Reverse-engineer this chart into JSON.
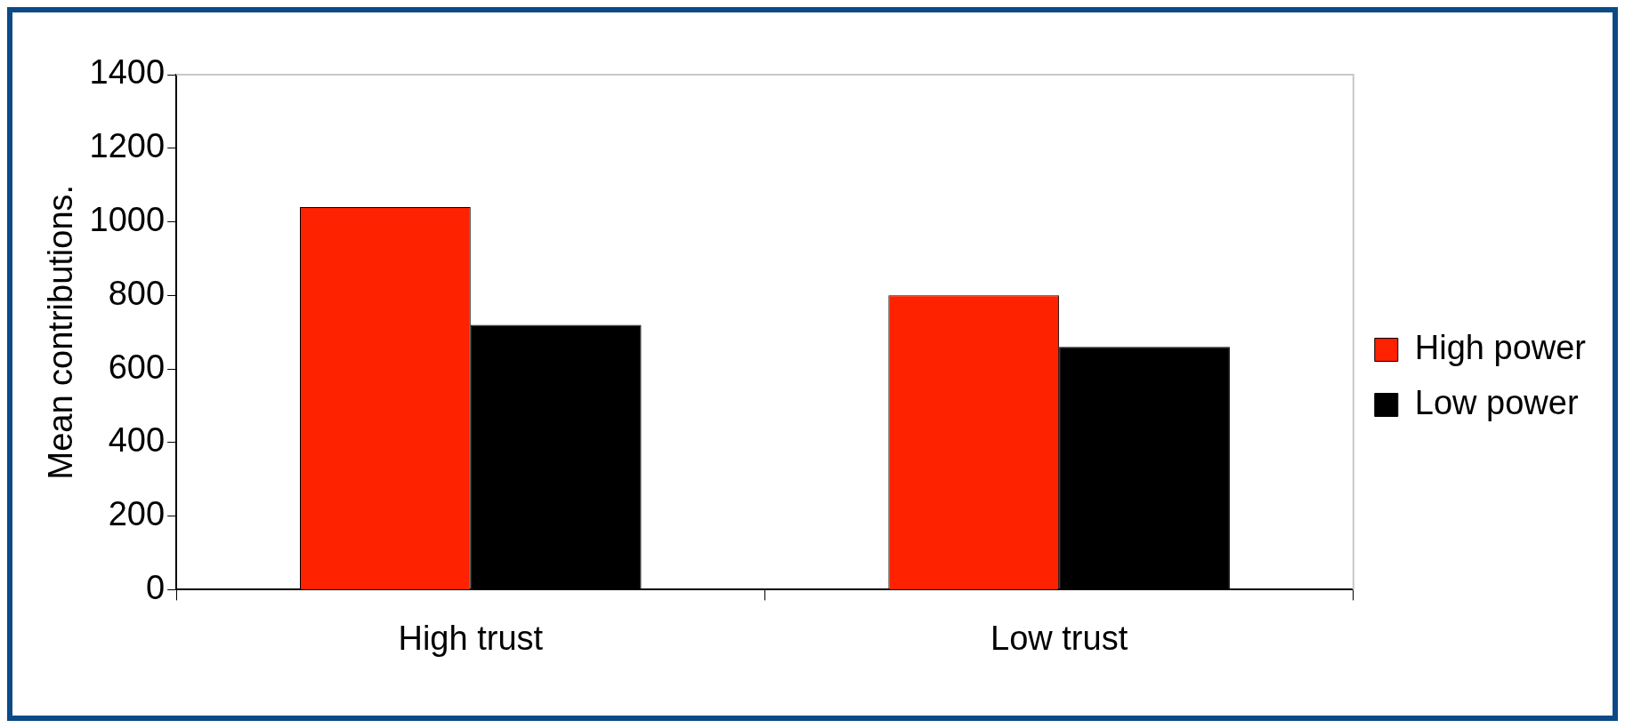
{
  "chart_data": {
    "type": "bar",
    "ylabel": "Mean contributions.",
    "categories": [
      "High trust",
      "Low trust"
    ],
    "series": [
      {
        "name": "High power",
        "color": "#ff2200",
        "values": [
          1040,
          800
        ]
      },
      {
        "name": "Low power",
        "color": "#000000",
        "values": [
          720,
          660
        ]
      }
    ],
    "ylim": [
      0,
      1400
    ],
    "yticks": [
      0,
      200,
      400,
      600,
      800,
      1000,
      1200,
      1400
    ],
    "grid": false,
    "legend": "right"
  }
}
